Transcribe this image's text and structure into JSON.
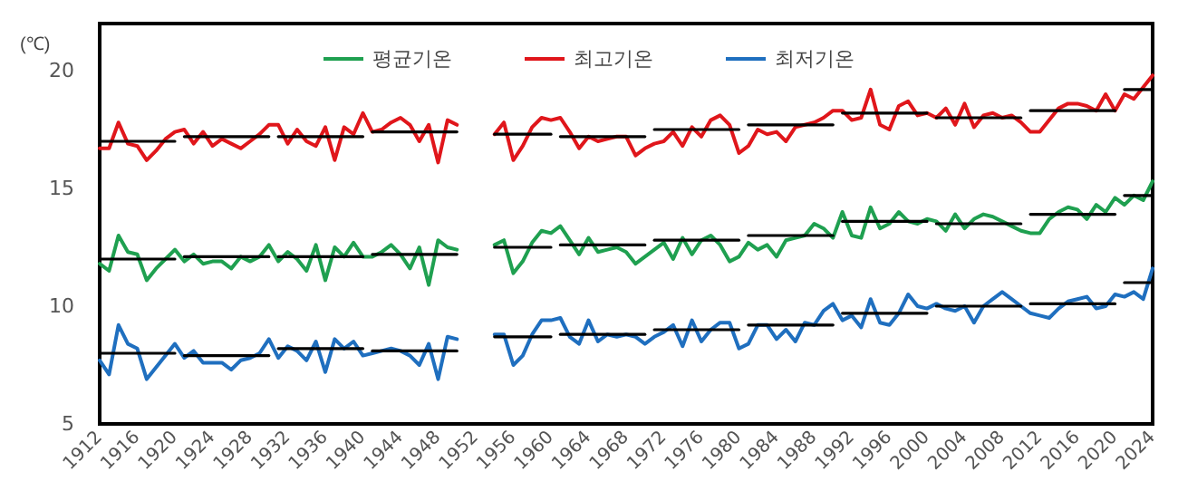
{
  "chart_data": {
    "type": "line",
    "ylabel": "(℃)",
    "x": [
      1912,
      1913,
      1914,
      1915,
      1916,
      1917,
      1918,
      1919,
      1920,
      1921,
      1922,
      1923,
      1924,
      1925,
      1926,
      1927,
      1928,
      1929,
      1930,
      1931,
      1932,
      1933,
      1934,
      1935,
      1936,
      1937,
      1938,
      1939,
      1940,
      1941,
      1942,
      1943,
      1944,
      1945,
      1946,
      1947,
      1948,
      1949,
      1950,
      1951,
      1952,
      1953,
      1954,
      1955,
      1956,
      1957,
      1958,
      1959,
      1960,
      1961,
      1962,
      1963,
      1964,
      1965,
      1966,
      1967,
      1968,
      1969,
      1970,
      1971,
      1972,
      1973,
      1974,
      1975,
      1976,
      1977,
      1978,
      1979,
      1980,
      1981,
      1982,
      1983,
      1984,
      1985,
      1986,
      1987,
      1988,
      1989,
      1990,
      1991,
      1992,
      1993,
      1994,
      1995,
      1996,
      1997,
      1998,
      1999,
      2000,
      2001,
      2002,
      2003,
      2004,
      2005,
      2006,
      2007,
      2008,
      2009,
      2010,
      2011,
      2012,
      2013,
      2014,
      2015,
      2016,
      2017,
      2018,
      2019,
      2020,
      2021,
      2022,
      2023,
      2024
    ],
    "series": [
      {
        "name": "평균기온",
        "color": "#1fa050",
        "values": [
          11.8,
          11.5,
          13.0,
          12.3,
          12.2,
          11.1,
          11.6,
          12.0,
          12.4,
          11.9,
          12.2,
          11.8,
          11.9,
          11.9,
          11.6,
          12.1,
          11.9,
          12.1,
          12.6,
          11.9,
          12.3,
          12.0,
          11.5,
          12.6,
          11.1,
          12.5,
          12.1,
          12.7,
          12.1,
          12.1,
          12.3,
          12.6,
          12.2,
          11.6,
          12.5,
          10.9,
          12.8,
          12.5,
          12.4,
          null,
          null,
          null,
          12.6,
          12.8,
          11.4,
          11.9,
          12.7,
          13.2,
          13.1,
          13.4,
          12.8,
          12.2,
          12.9,
          12.3,
          12.4,
          12.5,
          12.3,
          11.8,
          12.1,
          12.4,
          12.7,
          12.0,
          12.9,
          12.2,
          12.8,
          13.0,
          12.6,
          11.9,
          12.1,
          12.7,
          12.4,
          12.6,
          12.1,
          12.8,
          12.9,
          13.0,
          13.5,
          13.3,
          12.9,
          14.0,
          13.0,
          12.9,
          14.2,
          13.3,
          13.5,
          14.0,
          13.6,
          13.5,
          13.7,
          13.6,
          13.2,
          13.9,
          13.3,
          13.7,
          13.9,
          13.8,
          13.6,
          13.4,
          13.2,
          13.1,
          13.1,
          13.7,
          14.0,
          14.2,
          14.1,
          13.7,
          14.3,
          14.0,
          14.6,
          14.3,
          14.7,
          14.5,
          15.3
        ]
      },
      {
        "name": "최고기온",
        "color": "#e0161b",
        "values": [
          16.7,
          16.7,
          17.8,
          16.9,
          16.8,
          16.2,
          16.6,
          17.1,
          17.4,
          17.5,
          16.9,
          17.4,
          16.8,
          17.1,
          16.9,
          16.7,
          17.0,
          17.3,
          17.7,
          17.7,
          16.9,
          17.5,
          17.0,
          16.8,
          17.6,
          16.2,
          17.6,
          17.3,
          18.2,
          17.4,
          17.5,
          17.8,
          18.0,
          17.7,
          17.0,
          17.7,
          16.1,
          17.9,
          17.7,
          null,
          null,
          null,
          17.3,
          17.8,
          16.2,
          16.8,
          17.6,
          18.0,
          17.9,
          18.0,
          17.4,
          16.7,
          17.2,
          17.0,
          17.1,
          17.2,
          17.2,
          16.4,
          16.7,
          16.9,
          17.0,
          17.4,
          16.8,
          17.6,
          17.2,
          17.9,
          18.1,
          17.7,
          16.5,
          16.8,
          17.5,
          17.3,
          17.4,
          17.0,
          17.6,
          17.7,
          17.8,
          18.0,
          18.3,
          18.3,
          17.9,
          18.0,
          19.2,
          17.7,
          17.5,
          18.5,
          18.7,
          18.1,
          18.2,
          18.0,
          18.4,
          17.7,
          18.6,
          17.6,
          18.1,
          18.2,
          18.0,
          18.1,
          17.8,
          17.4,
          17.4,
          17.9,
          18.4,
          18.6,
          18.6,
          18.5,
          18.3,
          19.0,
          18.3,
          19.0,
          18.8,
          19.3,
          19.8
        ]
      },
      {
        "name": "최저기온",
        "color": "#1f6fbf",
        "values": [
          7.7,
          7.1,
          9.2,
          8.4,
          8.2,
          6.9,
          7.4,
          7.9,
          8.4,
          7.8,
          8.1,
          7.6,
          7.6,
          7.6,
          7.3,
          7.7,
          7.8,
          8.0,
          8.6,
          7.8,
          8.3,
          8.1,
          7.7,
          8.5,
          7.2,
          8.6,
          8.2,
          8.5,
          7.9,
          8.0,
          8.1,
          8.2,
          8.1,
          7.9,
          7.5,
          8.4,
          6.9,
          8.7,
          8.6,
          null,
          null,
          null,
          8.8,
          8.8,
          7.5,
          7.9,
          8.8,
          9.4,
          9.4,
          9.5,
          8.7,
          8.4,
          9.4,
          8.5,
          8.8,
          8.7,
          8.8,
          8.7,
          8.4,
          8.7,
          8.9,
          9.2,
          8.3,
          9.4,
          8.5,
          9.0,
          9.3,
          9.3,
          8.2,
          8.4,
          9.2,
          9.2,
          8.6,
          9.0,
          8.5,
          9.3,
          9.2,
          9.8,
          10.1,
          9.4,
          9.6,
          9.1,
          10.3,
          9.3,
          9.2,
          9.7,
          10.5,
          10.0,
          9.9,
          10.1,
          9.9,
          9.8,
          10.0,
          9.3,
          10.0,
          10.3,
          10.6,
          10.3,
          10.0,
          9.7,
          9.6,
          9.5,
          9.9,
          10.2,
          10.3,
          10.4,
          9.9,
          10.0,
          10.5,
          10.4,
          10.6,
          10.3,
          11.6
        ]
      },
      {
        "color": "#000000",
        "x": [
          1912,
          1920
        ],
        "values": [
          17.0,
          17.0
        ]
      },
      {
        "color": "#000000",
        "x": [
          1921,
          1930
        ],
        "values": [
          17.2,
          17.2
        ]
      },
      {
        "color": "#000000",
        "x": [
          1931,
          1940
        ],
        "values": [
          17.2,
          17.2
        ]
      },
      {
        "color": "#000000",
        "x": [
          1941,
          1950
        ],
        "values": [
          17.4,
          17.4
        ]
      },
      {
        "color": "#000000",
        "x": [
          1954,
          1960
        ],
        "values": [
          17.3,
          17.3
        ]
      },
      {
        "color": "#000000",
        "x": [
          1961,
          1970
        ],
        "values": [
          17.2,
          17.2
        ]
      },
      {
        "color": "#000000",
        "x": [
          1971,
          1980
        ],
        "values": [
          17.5,
          17.5
        ]
      },
      {
        "color": "#000000",
        "x": [
          1981,
          1990
        ],
        "values": [
          17.7,
          17.7
        ]
      },
      {
        "color": "#000000",
        "x": [
          1991,
          2000
        ],
        "values": [
          18.2,
          18.2
        ]
      },
      {
        "color": "#000000",
        "x": [
          2001,
          2010
        ],
        "values": [
          18.0,
          18.0
        ]
      },
      {
        "color": "#000000",
        "x": [
          2011,
          2020
        ],
        "values": [
          18.3,
          18.3
        ]
      },
      {
        "color": "#000000",
        "x": [
          2021,
          2024
        ],
        "values": [
          19.2,
          19.2
        ]
      },
      {
        "color": "#000000",
        "x": [
          1912,
          1920
        ],
        "values": [
          12.0,
          12.0
        ]
      },
      {
        "color": "#000000",
        "x": [
          1921,
          1930
        ],
        "values": [
          12.1,
          12.1
        ]
      },
      {
        "color": "#000000",
        "x": [
          1931,
          1940
        ],
        "values": [
          12.1,
          12.1
        ]
      },
      {
        "color": "#000000",
        "x": [
          1941,
          1950
        ],
        "values": [
          12.2,
          12.2
        ]
      },
      {
        "color": "#000000",
        "x": [
          1954,
          1960
        ],
        "values": [
          12.5,
          12.5
        ]
      },
      {
        "color": "#000000",
        "x": [
          1961,
          1970
        ],
        "values": [
          12.6,
          12.6
        ]
      },
      {
        "color": "#000000",
        "x": [
          1971,
          1980
        ],
        "values": [
          12.8,
          12.8
        ]
      },
      {
        "color": "#000000",
        "x": [
          1981,
          1990
        ],
        "values": [
          13.0,
          13.0
        ]
      },
      {
        "color": "#000000",
        "x": [
          1991,
          2000
        ],
        "values": [
          13.6,
          13.6
        ]
      },
      {
        "color": "#000000",
        "x": [
          2001,
          2010
        ],
        "values": [
          13.5,
          13.5
        ]
      },
      {
        "color": "#000000",
        "x": [
          2011,
          2020
        ],
        "values": [
          13.9,
          13.9
        ]
      },
      {
        "color": "#000000",
        "x": [
          2021,
          2024
        ],
        "values": [
          14.7,
          14.7
        ]
      },
      {
        "color": "#000000",
        "x": [
          1912,
          1920
        ],
        "values": [
          8.0,
          8.0
        ]
      },
      {
        "color": "#000000",
        "x": [
          1921,
          1930
        ],
        "values": [
          7.9,
          7.9
        ]
      },
      {
        "color": "#000000",
        "x": [
          1931,
          1940
        ],
        "values": [
          8.2,
          8.2
        ]
      },
      {
        "color": "#000000",
        "x": [
          1941,
          1950
        ],
        "values": [
          8.1,
          8.1
        ]
      },
      {
        "color": "#000000",
        "x": [
          1954,
          1960
        ],
        "values": [
          8.7,
          8.7
        ]
      },
      {
        "color": "#000000",
        "x": [
          1961,
          1970
        ],
        "values": [
          8.8,
          8.8
        ]
      },
      {
        "color": "#000000",
        "x": [
          1971,
          1980
        ],
        "values": [
          9.0,
          9.0
        ]
      },
      {
        "color": "#000000",
        "x": [
          1981,
          1990
        ],
        "values": [
          9.2,
          9.2
        ]
      },
      {
        "color": "#000000",
        "x": [
          1991,
          2000
        ],
        "values": [
          9.7,
          9.7
        ]
      },
      {
        "color": "#000000",
        "x": [
          2001,
          2010
        ],
        "values": [
          10.0,
          10.0
        ]
      },
      {
        "color": "#000000",
        "x": [
          2011,
          2020
        ],
        "values": [
          10.1,
          10.1
        ]
      },
      {
        "color": "#000000",
        "x": [
          2021,
          2024
        ],
        "values": [
          11.0,
          11.0
        ]
      }
    ],
    "xlim": [
      1912,
      2024
    ],
    "xticks": [
      1912,
      1916,
      1920,
      1924,
      1928,
      1932,
      1936,
      1940,
      1944,
      1948,
      1952,
      1956,
      1960,
      1964,
      1968,
      1972,
      1976,
      1980,
      1984,
      1988,
      1992,
      1996,
      2000,
      2004,
      2008,
      2012,
      2016,
      2020,
      2024
    ],
    "ylim": [
      5,
      22
    ],
    "yticks": [
      5,
      10,
      15,
      20
    ],
    "grid": false,
    "legend": "top",
    "marker": "none",
    "line_style": "solid"
  }
}
